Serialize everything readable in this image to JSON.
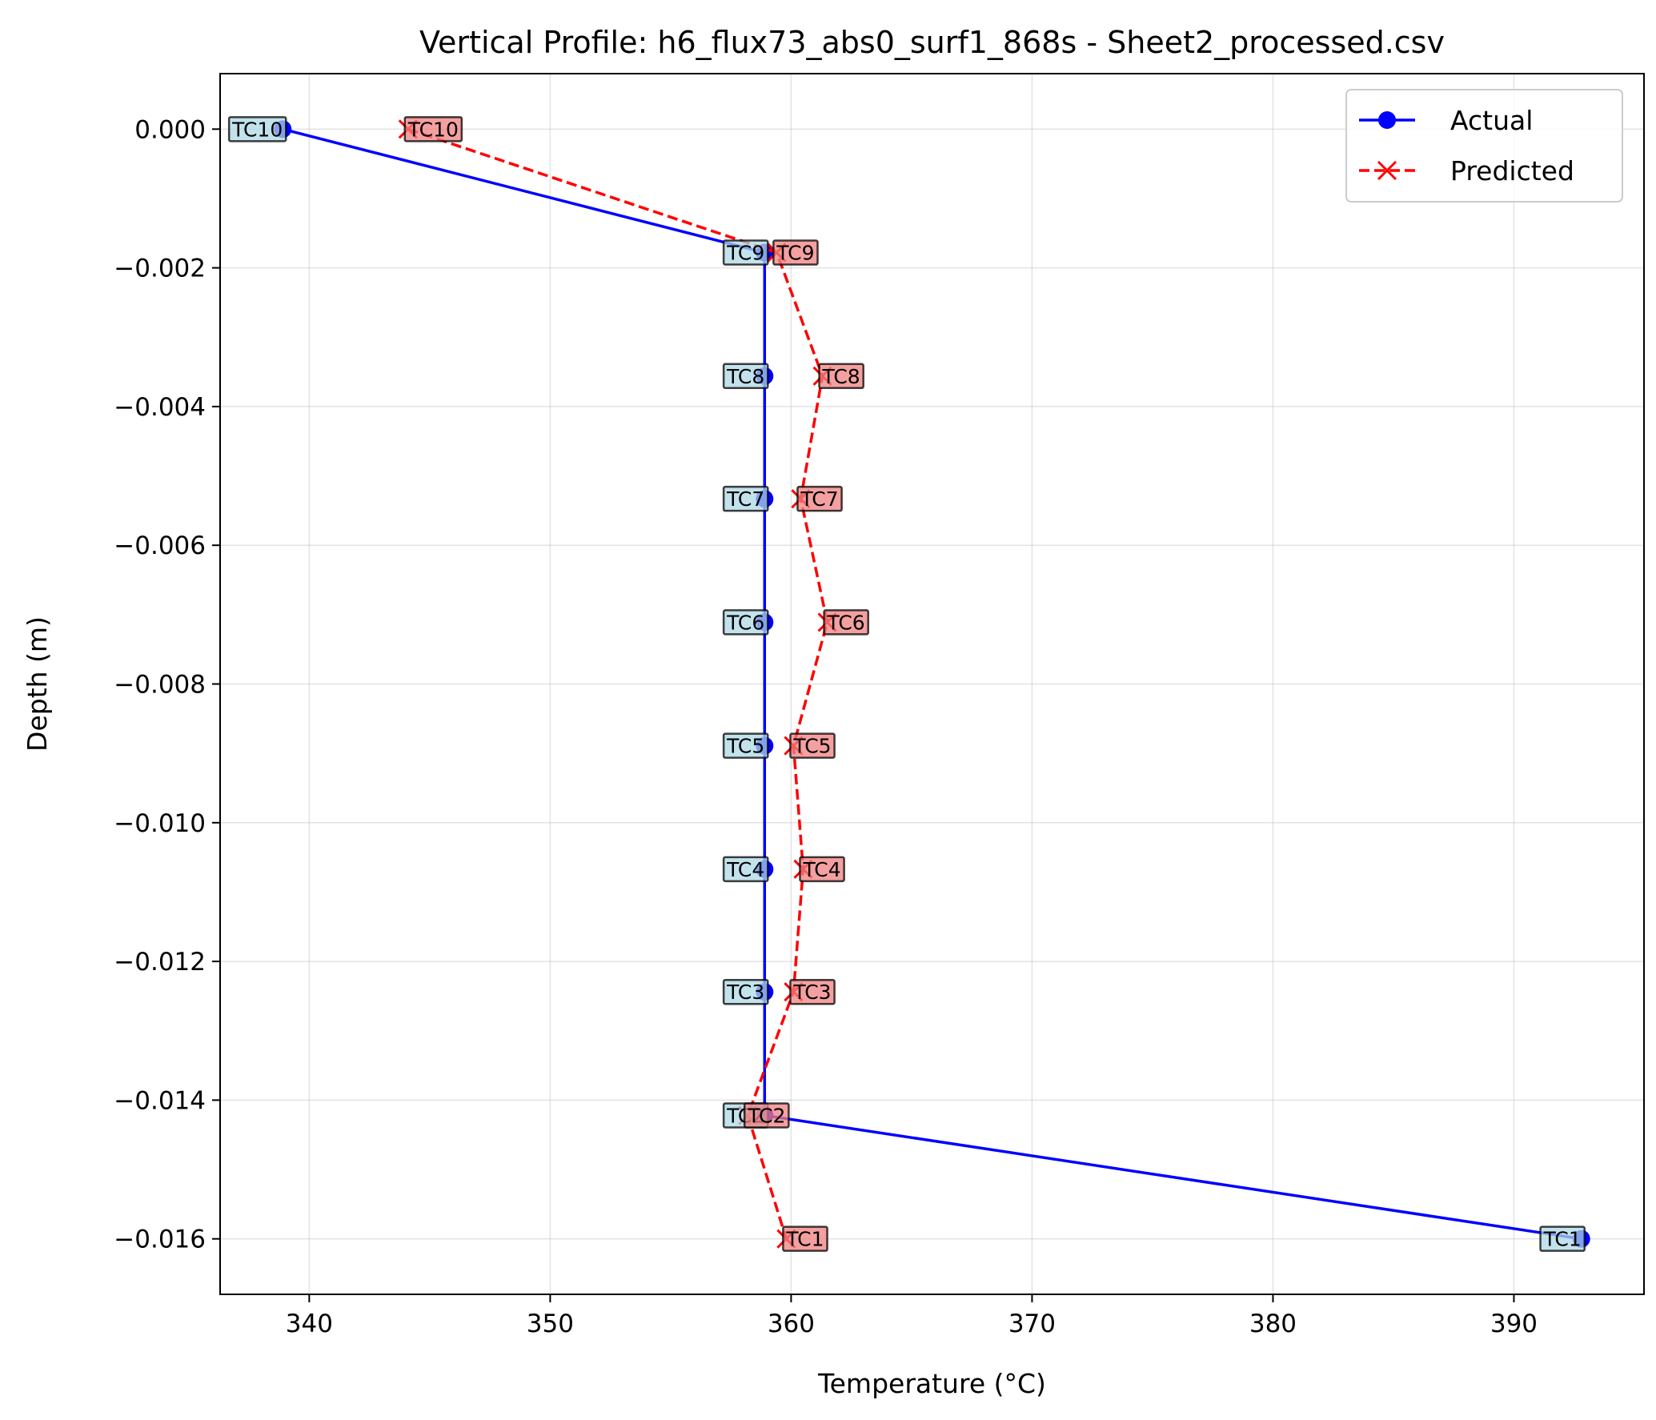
{
  "chart_data": {
    "type": "line",
    "title": "Vertical Profile: h6_flux73_abs0_surf1_868s - Sheet2_processed.csv",
    "xlabel": "Temperature (°C)",
    "ylabel": "Depth (m)",
    "xlim": [
      336.3,
      395.4
    ],
    "ylim": [
      -0.0168,
      0.0008
    ],
    "xticks": [
      340,
      350,
      360,
      370,
      380,
      390
    ],
    "yticks": [
      0.0,
      -0.002,
      -0.004,
      -0.006,
      -0.008,
      -0.01,
      -0.012,
      -0.014,
      -0.016
    ],
    "xtick_labels": [
      "340",
      "350",
      "360",
      "370",
      "380",
      "390"
    ],
    "ytick_labels": [
      "0.000",
      "−0.002",
      "−0.004",
      "−0.006",
      "−0.008",
      "−0.010",
      "−0.012",
      "−0.014",
      "−0.016"
    ],
    "grid": true,
    "legend_position": "top-right",
    "series": [
      {
        "name": "Actual",
        "color": "#0000ff",
        "line_style": "solid",
        "marker": "circle",
        "label_bg": "#add8e6",
        "points": [
          {
            "label": "TC10",
            "x": 338.9,
            "y": 0.0
          },
          {
            "label": "TC9",
            "x": 358.9,
            "y": -0.00178
          },
          {
            "label": "TC8",
            "x": 358.9,
            "y": -0.00356
          },
          {
            "label": "TC7",
            "x": 358.9,
            "y": -0.00533
          },
          {
            "label": "TC6",
            "x": 358.9,
            "y": -0.00711
          },
          {
            "label": "TC5",
            "x": 358.9,
            "y": -0.00889
          },
          {
            "label": "TC4",
            "x": 358.9,
            "y": -0.01067
          },
          {
            "label": "TC3",
            "x": 358.9,
            "y": -0.01244
          },
          {
            "label": "TC2",
            "x": 358.9,
            "y": -0.01422
          },
          {
            "label": "TC1",
            "x": 392.8,
            "y": -0.016
          }
        ]
      },
      {
        "name": "Predicted",
        "color": "#ff0000",
        "line_style": "dashed",
        "marker": "x",
        "label_bg": "#f08080",
        "points": [
          {
            "label": "TC10",
            "x": 344.1,
            "y": 0.0
          },
          {
            "label": "TC9",
            "x": 359.4,
            "y": -0.00178
          },
          {
            "label": "TC8",
            "x": 361.3,
            "y": -0.00356
          },
          {
            "label": "TC7",
            "x": 360.4,
            "y": -0.00533
          },
          {
            "label": "TC6",
            "x": 361.5,
            "y": -0.00711
          },
          {
            "label": "TC5",
            "x": 360.1,
            "y": -0.00889
          },
          {
            "label": "TC4",
            "x": 360.5,
            "y": -0.01067
          },
          {
            "label": "TC3",
            "x": 360.1,
            "y": -0.01244
          },
          {
            "label": "TC2",
            "x": 358.2,
            "y": -0.01422
          },
          {
            "label": "TC1",
            "x": 359.8,
            "y": -0.016
          }
        ]
      }
    ]
  }
}
